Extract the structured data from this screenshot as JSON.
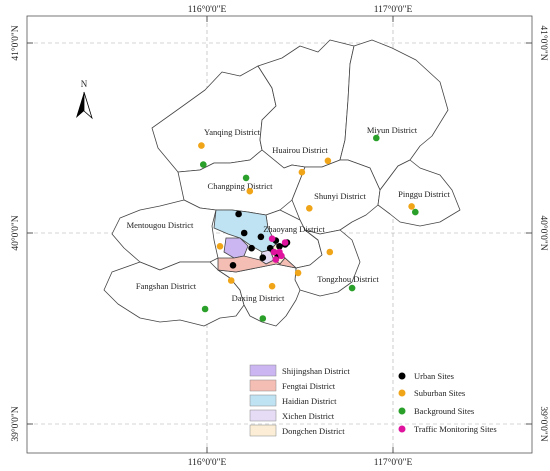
{
  "north_arrow": {
    "label": "N"
  },
  "coordinates": {
    "top": [
      "116°0'0\"E",
      "117°0'0\"E"
    ],
    "bottom": [
      "116°0'0\"E",
      "117°0'0\"E"
    ],
    "left": [
      "41°0'0\"N",
      "40°0'0\"N",
      "39°0'0\"N"
    ],
    "right": [
      "41°0'0\"N",
      "40°0'0\"N",
      "39°0'0\"N"
    ]
  },
  "districts": [
    {
      "id": "yanqing",
      "label": "Yanqing District"
    },
    {
      "id": "huairou",
      "label": "Huairou District"
    },
    {
      "id": "miyun",
      "label": "Miyun District"
    },
    {
      "id": "changping",
      "label": "Changping District"
    },
    {
      "id": "shunyi",
      "label": "Shunyi District"
    },
    {
      "id": "pinggu",
      "label": "Pinggu District"
    },
    {
      "id": "mentougou",
      "label": "Mentougou District"
    },
    {
      "id": "zhaoyang",
      "label": "Zhaoyang District"
    },
    {
      "id": "fangshan",
      "label": "Fangshan District"
    },
    {
      "id": "daxing",
      "label": "Daxing District"
    },
    {
      "id": "tongzhou",
      "label": "Tongzhou District"
    }
  ],
  "legend_regions": [
    {
      "label": "Shijingshan District",
      "color": "#cbb6f2"
    },
    {
      "label": "Fengtai District",
      "color": "#f5beb4"
    },
    {
      "label": "Haidian District",
      "color": "#bfe3f2"
    },
    {
      "label": "Xichen District",
      "color": "#e6dcf6"
    },
    {
      "label": "Dongchen District",
      "color": "#fbedd6"
    }
  ],
  "legend_sites": [
    {
      "label": "Urban Sites",
      "color": "#000000"
    },
    {
      "label": "Suburban Sites",
      "color": "#f0a418"
    },
    {
      "label": "Background Sites",
      "color": "#2aa02a"
    },
    {
      "label": "Traffic Monitoring Sites",
      "color": "#e0139f"
    }
  ],
  "sites": {
    "urban": [
      [
        116.17,
        40.1
      ],
      [
        116.2,
        40.0
      ],
      [
        116.29,
        39.98
      ],
      [
        116.37,
        39.96
      ],
      [
        116.42,
        39.94
      ],
      [
        116.43,
        39.95
      ],
      [
        116.39,
        39.93
      ],
      [
        116.34,
        39.92
      ],
      [
        116.3,
        39.87
      ],
      [
        116.14,
        39.83
      ],
      [
        116.24,
        39.92
      ],
      [
        116.38,
        39.88
      ]
    ],
    "suburban": [
      [
        115.97,
        40.46
      ],
      [
        116.23,
        40.22
      ],
      [
        116.51,
        40.32
      ],
      [
        116.65,
        40.38
      ],
      [
        116.55,
        40.13
      ],
      [
        117.1,
        40.14
      ],
      [
        116.07,
        39.93
      ],
      [
        116.13,
        39.75
      ],
      [
        116.35,
        39.72
      ],
      [
        116.49,
        39.79
      ],
      [
        116.66,
        39.9
      ]
    ],
    "background": [
      [
        115.98,
        40.36
      ],
      [
        116.21,
        40.29
      ],
      [
        116.91,
        40.5
      ],
      [
        117.12,
        40.11
      ],
      [
        116.78,
        39.71
      ],
      [
        115.99,
        39.6
      ],
      [
        116.3,
        39.55
      ]
    ],
    "traffic": [
      [
        116.35,
        39.97
      ],
      [
        116.42,
        39.95
      ],
      [
        116.36,
        39.9
      ],
      [
        116.39,
        39.9
      ],
      [
        116.37,
        39.86
      ],
      [
        116.4,
        39.88
      ]
    ]
  }
}
